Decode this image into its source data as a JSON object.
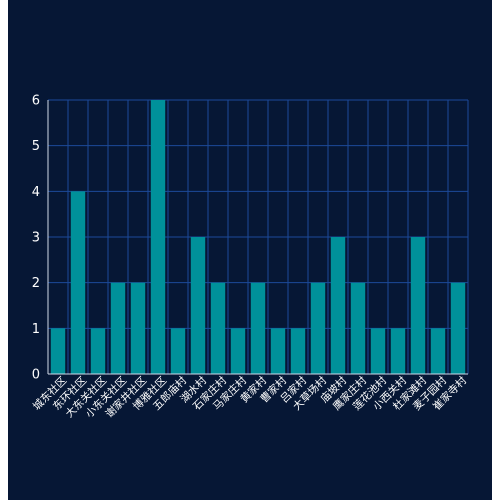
{
  "colors": {
    "background": "#061735",
    "bar": "#00919a",
    "grid": "#1c4a9a",
    "text": "#ffffff"
  },
  "chart_data": {
    "type": "bar",
    "title": "",
    "xlabel": "",
    "ylabel": "",
    "ylim": [
      0,
      6
    ],
    "yticks": [
      0,
      1,
      2,
      3,
      4,
      5,
      6
    ],
    "grid": true,
    "categories": [
      "城东社区",
      "东环社区",
      "大东关社区",
      "小东关社区",
      "谢家井社区",
      "博雅社区",
      "五郎庙村",
      "湖水村",
      "石家庄村",
      "马家庄村",
      "黄家村",
      "曹家村",
      "吕家村",
      "大草场村",
      "庙坡村",
      "鹰家庄村",
      "莲花池村",
      "小西关村",
      "杜家滩村",
      "麦子园村",
      "崔家寺村"
    ],
    "values": [
      1,
      4,
      1,
      2,
      2,
      6,
      1,
      3,
      2,
      1,
      2,
      1,
      1,
      2,
      3,
      2,
      1,
      1,
      3,
      1,
      2
    ]
  }
}
